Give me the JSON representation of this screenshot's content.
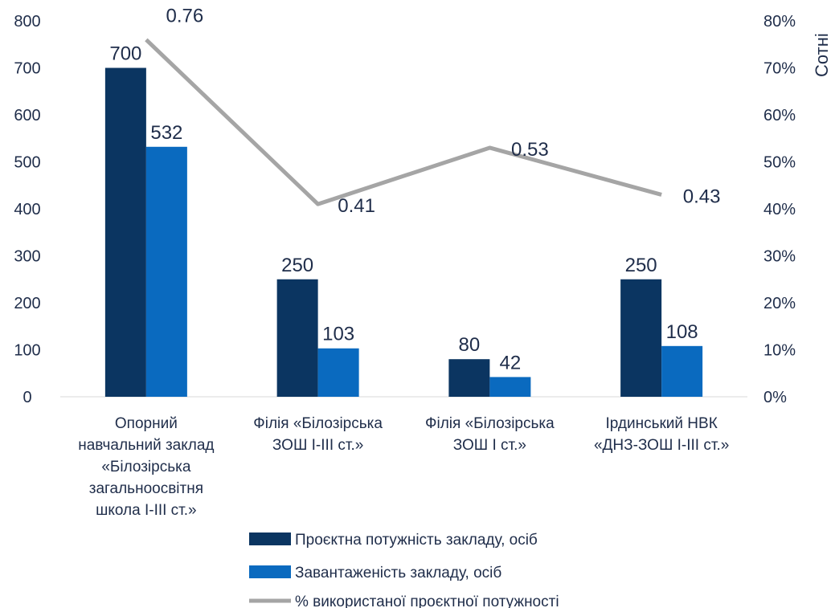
{
  "chart_data": {
    "type": "bar",
    "categories": [
      [
        "Опорний",
        "навчальний заклад",
        "«Білозірська",
        "загальноосвітня",
        "школа І-ІІІ ст.»"
      ],
      [
        "Філія «Білозірська",
        "ЗОШ І-ІІІ ст.»"
      ],
      [
        "Філія «Білозірська",
        "ЗОШ І ст.»"
      ],
      [
        "Ірдинський НВК",
        "«ДНЗ-ЗОШ І-ІІІ ст.»"
      ]
    ],
    "series": [
      {
        "name": "Проєктна потужність закладу, осіб",
        "kind": "bar",
        "axis": "left",
        "color": "#0b3561",
        "values": [
          700,
          250,
          80,
          250
        ],
        "labels": [
          "700",
          "250",
          "80",
          "250"
        ]
      },
      {
        "name": "Завантаженість закладу, осіб",
        "kind": "bar",
        "axis": "left",
        "color": "#0a6abf",
        "values": [
          532,
          103,
          42,
          108
        ],
        "labels": [
          "532",
          "103",
          "42",
          "108"
        ]
      },
      {
        "name": "% використаної проєктної потужності",
        "kind": "line",
        "axis": "right",
        "color": "#a5a5a5",
        "values": [
          0.76,
          0.41,
          0.53,
          0.43
        ],
        "labels": [
          "0.76",
          "0.41",
          "0.53",
          "0.43"
        ]
      }
    ],
    "y_left": {
      "ylim": [
        0,
        800
      ],
      "ticks": [
        "0",
        "100",
        "200",
        "300",
        "400",
        "500",
        "600",
        "700",
        "800"
      ]
    },
    "y_right": {
      "ylim": [
        0,
        0.8
      ],
      "ticks": [
        "0%",
        "10%",
        "20%",
        "30%",
        "40%",
        "50%",
        "60%",
        "70%",
        "80%"
      ],
      "label": "Сотні"
    },
    "grid": false,
    "legend_position": "bottom"
  }
}
